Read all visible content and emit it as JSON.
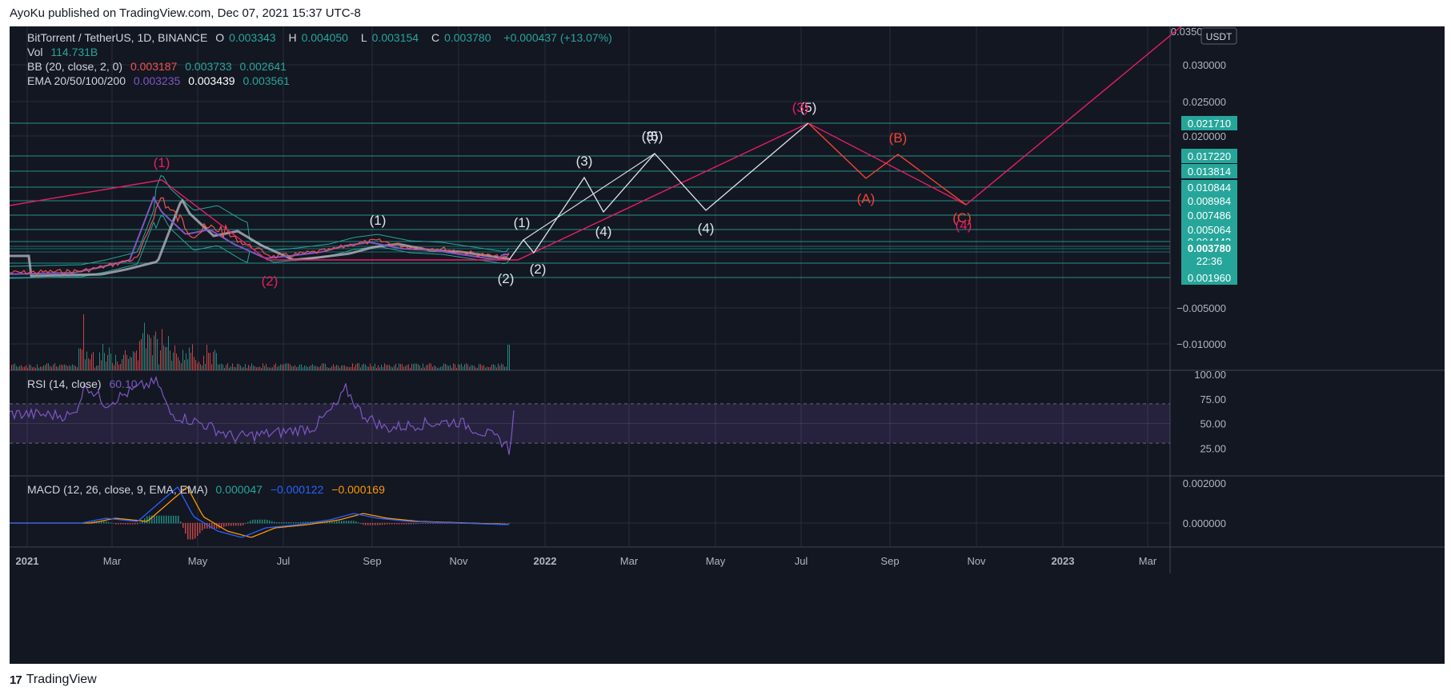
{
  "header": {
    "published": "AyoKu published on TradingView.com, Dec 07, 2021 15:37 UTC-8"
  },
  "footer": {
    "brand": "TradingView",
    "logo_glyph": "17"
  },
  "legend": {
    "symbol": "BitTorrent / TetherUS, 1D, BINANCE",
    "o_label": "O",
    "o_value": "0.003343",
    "h_label": "H",
    "h_value": "0.004050",
    "l_label": "L",
    "l_value": "0.003154",
    "c_label": "C",
    "c_value": "0.003780",
    "change": "+0.000437 (+13.07%)",
    "vol_label": "Vol",
    "vol_value": "114.731B",
    "bb_label": "BB (20, close, 2, 0)",
    "bb_v1": "0.003187",
    "bb_v2": "0.003733",
    "bb_v3": "0.002641",
    "ema_label": "EMA 20/50/100/200",
    "ema_v1": "0.003235",
    "ema_v2": "0.003439",
    "ema_v3": "0.003561",
    "rsi_label": "RSI (14, close)",
    "rsi_value": "60.10",
    "macd_label": "MACD (12, 26, close, 9, EMA, EMA)",
    "macd_v1": "0.000047",
    "macd_v2": "−0.000122",
    "macd_v3": "−0.000169"
  },
  "colors": {
    "bg": "#131722",
    "grid": "#2a2e39",
    "text": "#b2b5be",
    "teal": "#26a69a",
    "pink": "#e91e63",
    "white_path": "#d1d4dc",
    "orange_red": "#f44336",
    "purple": "#7e57c2",
    "macd_blue": "#2962ff",
    "macd_orange": "#ff9800",
    "band": "#26a69a"
  },
  "chart_data": {
    "type": "line",
    "title": "BitTorrent / TetherUS, 1D, BINANCE",
    "currency": "USDT",
    "x_ticks": [
      "2021",
      "Mar",
      "May",
      "Jul",
      "Sep",
      "Nov",
      "2022",
      "Mar",
      "May",
      "Jul",
      "Sep",
      "Nov",
      "2023",
      "Mar"
    ],
    "y_ticks": [
      "0.030000",
      "0.025000",
      "0.020000",
      "−0.005000",
      "−0.010000"
    ],
    "top_partial_label": "0.035000",
    "price_levels": [
      {
        "label": "0.021710",
        "value": 0.02171
      },
      {
        "label": "0.017220",
        "value": 0.01722
      },
      {
        "label": "0.013814",
        "value": 0.013814
      },
      {
        "label": "0.010844",
        "value": 0.010844
      },
      {
        "label": "0.008984",
        "value": 0.008984
      },
      {
        "label": "0.007486",
        "value": 0.007486
      },
      {
        "label": "0.005064",
        "value": 0.005064
      },
      {
        "label": "0.004442",
        "value": 0.004442
      },
      {
        "label": "0.003468",
        "value": 0.003468
      },
      {
        "label": "0.001960",
        "value": 0.00196
      }
    ],
    "last_price": {
      "label": "0.003780",
      "countdown": "22:36"
    },
    "wave_labels": [
      {
        "text": "(1)",
        "color": "pink"
      },
      {
        "text": "(2)",
        "color": "pink"
      },
      {
        "text": "(1)",
        "color": "white"
      },
      {
        "text": "(2)",
        "color": "white"
      },
      {
        "text": "(1)",
        "color": "white"
      },
      {
        "text": "(2)",
        "color": "white"
      },
      {
        "text": "(3)",
        "color": "white"
      },
      {
        "text": "(4)",
        "color": "white"
      },
      {
        "text": "(5)",
        "color": "white"
      },
      {
        "text": "(3)",
        "color": "white"
      },
      {
        "text": "(4)",
        "color": "white"
      },
      {
        "text": "(5)",
        "color": "white"
      },
      {
        "text": "(3)",
        "color": "pink"
      },
      {
        "text": "(A)",
        "color": "orange_red"
      },
      {
        "text": "(B)",
        "color": "orange_red"
      },
      {
        "text": "(C)",
        "color": "orange_red"
      },
      {
        "text": "(4)",
        "color": "pink"
      }
    ],
    "rsi": {
      "ticks": [
        "100.00",
        "75.00",
        "50.00",
        "25.00"
      ],
      "upper": 70,
      "lower": 30,
      "last": 60.1
    },
    "macd": {
      "ticks": [
        "0.002000",
        "0.000000"
      ]
    }
  }
}
